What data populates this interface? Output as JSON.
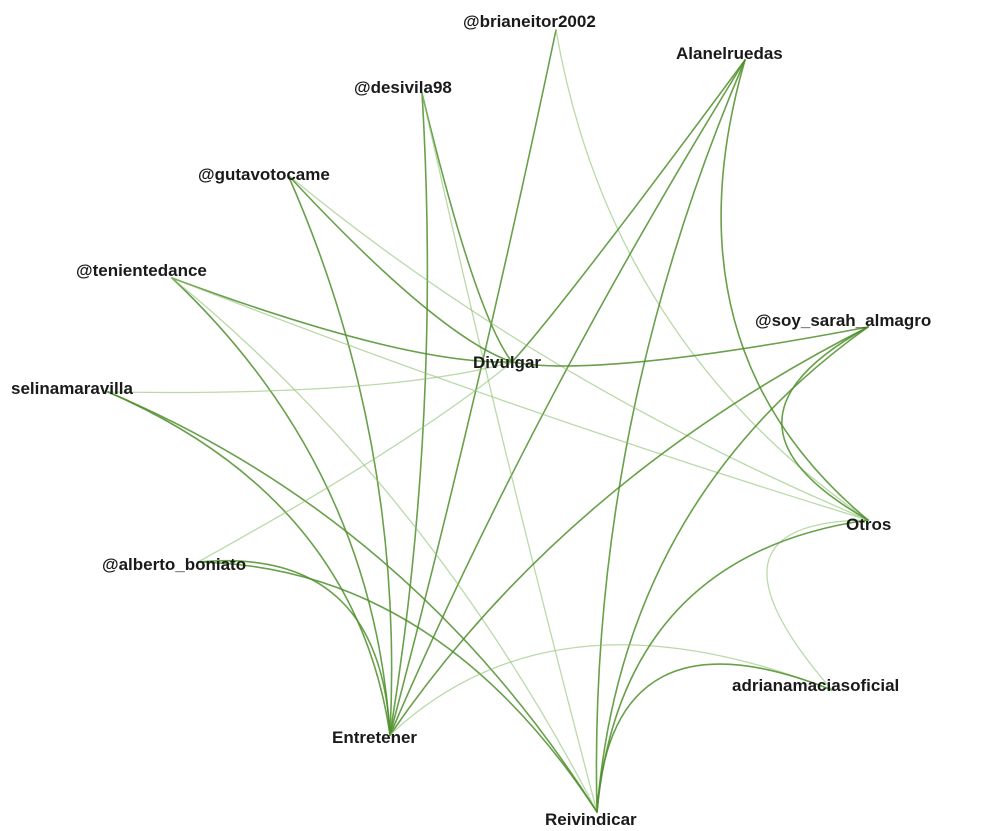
{
  "nodes": [
    {
      "id": "brianeitor",
      "label": "@brianeitor2002"
    },
    {
      "id": "alanel",
      "label": "Alanelruedas"
    },
    {
      "id": "desivila",
      "label": "@desivila98"
    },
    {
      "id": "gutavo",
      "label": "@gutavotocame"
    },
    {
      "id": "teniente",
      "label": "@tenientedance"
    },
    {
      "id": "sarah",
      "label": "@soy_sarah_almagro"
    },
    {
      "id": "divulgar",
      "label": "Divulgar"
    },
    {
      "id": "selina",
      "label": "selinamaravilla"
    },
    {
      "id": "otros",
      "label": "Otros"
    },
    {
      "id": "alberto",
      "label": "@alberto_boniato"
    },
    {
      "id": "adriana",
      "label": "adrianamaciasoficial"
    },
    {
      "id": "entretener",
      "label": "Entretener"
    },
    {
      "id": "reivindicar",
      "label": "Reivindicar"
    }
  ],
  "edges": [
    {
      "from": "brianeitor",
      "to": "entretener",
      "weight": "strong"
    },
    {
      "from": "brianeitor",
      "to": "otros",
      "weight": "light"
    },
    {
      "from": "alanel",
      "to": "divulgar",
      "weight": "strong"
    },
    {
      "from": "alanel",
      "to": "entretener",
      "weight": "strong"
    },
    {
      "from": "alanel",
      "to": "reivindicar",
      "weight": "strong"
    },
    {
      "from": "alanel",
      "to": "otros",
      "weight": "strong"
    },
    {
      "from": "desivila",
      "to": "divulgar",
      "weight": "strong"
    },
    {
      "from": "desivila",
      "to": "entretener",
      "weight": "strong"
    },
    {
      "from": "desivila",
      "to": "reivindicar",
      "weight": "light"
    },
    {
      "from": "gutavo",
      "to": "divulgar",
      "weight": "strong"
    },
    {
      "from": "gutavo",
      "to": "entretener",
      "weight": "strong"
    },
    {
      "from": "gutavo",
      "to": "otros",
      "weight": "light"
    },
    {
      "from": "teniente",
      "to": "divulgar",
      "weight": "strong"
    },
    {
      "from": "teniente",
      "to": "entretener",
      "weight": "strong"
    },
    {
      "from": "teniente",
      "to": "reivindicar",
      "weight": "light"
    },
    {
      "from": "teniente",
      "to": "otros",
      "weight": "light"
    },
    {
      "from": "sarah",
      "to": "divulgar",
      "weight": "strong"
    },
    {
      "from": "sarah",
      "to": "entretener",
      "weight": "strong"
    },
    {
      "from": "sarah",
      "to": "reivindicar",
      "weight": "strong"
    },
    {
      "from": "sarah",
      "to": "otros",
      "weight": "strong"
    },
    {
      "from": "selina",
      "to": "divulgar",
      "weight": "light"
    },
    {
      "from": "selina",
      "to": "entretener",
      "weight": "strong"
    },
    {
      "from": "selina",
      "to": "reivindicar",
      "weight": "strong"
    },
    {
      "from": "alberto",
      "to": "divulgar",
      "weight": "light"
    },
    {
      "from": "alberto",
      "to": "entretener",
      "weight": "strong"
    },
    {
      "from": "alberto",
      "to": "reivindicar",
      "weight": "strong"
    },
    {
      "from": "adriana",
      "to": "entretener",
      "weight": "light"
    },
    {
      "from": "adriana",
      "to": "reivindicar",
      "weight": "strong"
    },
    {
      "from": "adriana",
      "to": "otros",
      "weight": "light"
    },
    {
      "from": "otros",
      "to": "reivindicar",
      "weight": "strong"
    }
  ],
  "colors": {
    "edge_strong": "#4f8f2c",
    "edge_light": "#8cc070",
    "label": "#1a1a1a",
    "background": "#ffffff"
  }
}
